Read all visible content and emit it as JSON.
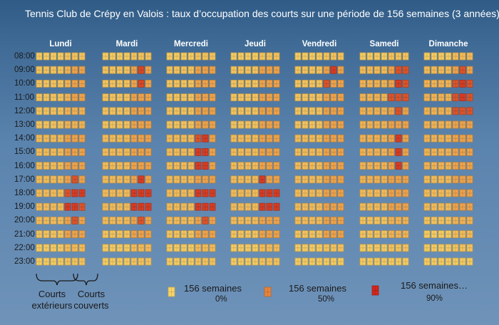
{
  "title": "Tennis Club de Crépy en Valois : taux d’occupation des courts sur une période de 156 semaines (3 années)",
  "chart_data": {
    "type": "heatmap",
    "days": [
      "Lundi",
      "Mardi",
      "Mercredi",
      "Jeudi",
      "Vendredi",
      "Samedi",
      "Dimanche"
    ],
    "hours": [
      "08:00",
      "09:00",
      "10:00",
      "11:00",
      "12:00",
      "13:00",
      "14:00",
      "15:00",
      "16:00",
      "17:00",
      "18:00",
      "19:00",
      "20:00",
      "21:00",
      "22:00",
      "23:00"
    ],
    "courts_per_day": [
      "ext",
      "ext",
      "ext",
      "ext",
      "cov",
      "cov",
      "cov"
    ],
    "color_scale": {
      "low": "#f7d468",
      "mid": "#e8843a",
      "high": "#d2261c"
    },
    "occupancy": [
      [
        [
          0.05,
          0.05,
          0.05,
          0.05,
          0.1,
          0.1,
          0.1
        ],
        [
          0.05,
          0.05,
          0.05,
          0.05,
          0.1,
          0.1,
          0.1
        ],
        [
          0.05,
          0.05,
          0.05,
          0.05,
          0.1,
          0.1,
          0.1
        ],
        [
          0.05,
          0.05,
          0.05,
          0.05,
          0.1,
          0.1,
          0.1
        ],
        [
          0.05,
          0.05,
          0.05,
          0.05,
          0.1,
          0.1,
          0.1
        ],
        [
          0.05,
          0.05,
          0.05,
          0.05,
          0.1,
          0.1,
          0.1
        ],
        [
          0.05,
          0.05,
          0.05,
          0.05,
          0.15,
          0.15,
          0.15
        ]
      ],
      [
        [
          0.1,
          0.1,
          0.1,
          0.1,
          0.2,
          0.3,
          0.3
        ],
        [
          0.1,
          0.1,
          0.1,
          0.1,
          0.3,
          0.75,
          0.3
        ],
        [
          0.1,
          0.1,
          0.1,
          0.1,
          0.3,
          0.3,
          0.3
        ],
        [
          0.1,
          0.1,
          0.1,
          0.1,
          0.3,
          0.3,
          0.3
        ],
        [
          0.1,
          0.1,
          0.1,
          0.1,
          0.3,
          0.8,
          0.3
        ],
        [
          0.15,
          0.15,
          0.15,
          0.15,
          0.3,
          0.7,
          0.7
        ],
        [
          0.15,
          0.15,
          0.15,
          0.15,
          0.3,
          0.7,
          0.3
        ]
      ],
      [
        [
          0.1,
          0.1,
          0.1,
          0.1,
          0.2,
          0.3,
          0.3
        ],
        [
          0.1,
          0.1,
          0.1,
          0.1,
          0.3,
          0.75,
          0.3
        ],
        [
          0.1,
          0.1,
          0.1,
          0.1,
          0.3,
          0.3,
          0.3
        ],
        [
          0.1,
          0.1,
          0.1,
          0.1,
          0.3,
          0.3,
          0.3
        ],
        [
          0.1,
          0.1,
          0.1,
          0.1,
          0.7,
          0.3,
          0.3
        ],
        [
          0.2,
          0.2,
          0.2,
          0.2,
          0.3,
          0.8,
          0.7
        ],
        [
          0.2,
          0.2,
          0.2,
          0.2,
          0.7,
          0.8,
          0.7
        ]
      ],
      [
        [
          0.1,
          0.1,
          0.1,
          0.1,
          0.2,
          0.3,
          0.3
        ],
        [
          0.1,
          0.1,
          0.1,
          0.1,
          0.3,
          0.3,
          0.3
        ],
        [
          0.1,
          0.1,
          0.1,
          0.1,
          0.3,
          0.3,
          0.3
        ],
        [
          0.1,
          0.1,
          0.1,
          0.1,
          0.3,
          0.3,
          0.3
        ],
        [
          0.1,
          0.1,
          0.1,
          0.1,
          0.3,
          0.3,
          0.3
        ],
        [
          0.2,
          0.2,
          0.2,
          0.2,
          0.7,
          0.7,
          0.7
        ],
        [
          0.2,
          0.2,
          0.2,
          0.2,
          0.7,
          0.8,
          0.7
        ]
      ],
      [
        [
          0.1,
          0.1,
          0.1,
          0.1,
          0.2,
          0.2,
          0.2
        ],
        [
          0.1,
          0.1,
          0.1,
          0.1,
          0.3,
          0.3,
          0.3
        ],
        [
          0.1,
          0.1,
          0.1,
          0.1,
          0.3,
          0.3,
          0.3
        ],
        [
          0.1,
          0.1,
          0.1,
          0.1,
          0.3,
          0.3,
          0.3
        ],
        [
          0.1,
          0.1,
          0.1,
          0.1,
          0.3,
          0.3,
          0.3
        ],
        [
          0.2,
          0.2,
          0.2,
          0.2,
          0.3,
          0.7,
          0.3
        ],
        [
          0.2,
          0.2,
          0.2,
          0.2,
          0.7,
          0.7,
          0.7
        ]
      ],
      [
        [
          0.1,
          0.1,
          0.1,
          0.1,
          0.2,
          0.2,
          0.2
        ],
        [
          0.1,
          0.1,
          0.1,
          0.1,
          0.3,
          0.3,
          0.3
        ],
        [
          0.1,
          0.1,
          0.1,
          0.1,
          0.3,
          0.3,
          0.3
        ],
        [
          0.1,
          0.1,
          0.1,
          0.1,
          0.3,
          0.3,
          0.3
        ],
        [
          0.1,
          0.1,
          0.1,
          0.1,
          0.3,
          0.3,
          0.3
        ],
        [
          0.2,
          0.2,
          0.2,
          0.2,
          0.3,
          0.3,
          0.3
        ],
        [
          0.2,
          0.2,
          0.2,
          0.2,
          0.3,
          0.3,
          0.3
        ]
      ],
      [
        [
          0.15,
          0.15,
          0.15,
          0.15,
          0.3,
          0.3,
          0.3
        ],
        [
          0.15,
          0.15,
          0.15,
          0.15,
          0.3,
          0.3,
          0.3
        ],
        [
          0.15,
          0.15,
          0.15,
          0.15,
          0.7,
          0.8,
          0.3
        ],
        [
          0.15,
          0.15,
          0.15,
          0.15,
          0.3,
          0.3,
          0.3
        ],
        [
          0.15,
          0.15,
          0.15,
          0.15,
          0.3,
          0.3,
          0.3
        ],
        [
          0.2,
          0.2,
          0.2,
          0.2,
          0.3,
          0.8,
          0.3
        ],
        [
          0.2,
          0.2,
          0.2,
          0.2,
          0.3,
          0.3,
          0.3
        ]
      ],
      [
        [
          0.15,
          0.15,
          0.15,
          0.15,
          0.3,
          0.3,
          0.3
        ],
        [
          0.15,
          0.15,
          0.15,
          0.15,
          0.3,
          0.3,
          0.3
        ],
        [
          0.15,
          0.15,
          0.15,
          0.15,
          0.8,
          0.8,
          0.3
        ],
        [
          0.15,
          0.15,
          0.15,
          0.15,
          0.3,
          0.3,
          0.3
        ],
        [
          0.15,
          0.15,
          0.15,
          0.15,
          0.3,
          0.3,
          0.3
        ],
        [
          0.2,
          0.2,
          0.2,
          0.2,
          0.3,
          0.8,
          0.3
        ],
        [
          0.2,
          0.2,
          0.2,
          0.2,
          0.3,
          0.3,
          0.3
        ]
      ],
      [
        [
          0.15,
          0.15,
          0.15,
          0.15,
          0.3,
          0.3,
          0.3
        ],
        [
          0.15,
          0.15,
          0.15,
          0.15,
          0.3,
          0.3,
          0.3
        ],
        [
          0.15,
          0.15,
          0.15,
          0.15,
          0.8,
          0.8,
          0.3
        ],
        [
          0.15,
          0.15,
          0.15,
          0.15,
          0.3,
          0.3,
          0.3
        ],
        [
          0.15,
          0.15,
          0.15,
          0.15,
          0.3,
          0.3,
          0.3
        ],
        [
          0.2,
          0.2,
          0.2,
          0.2,
          0.3,
          0.8,
          0.3
        ],
        [
          0.2,
          0.2,
          0.2,
          0.2,
          0.3,
          0.3,
          0.3
        ]
      ],
      [
        [
          0.15,
          0.15,
          0.15,
          0.15,
          0.3,
          0.7,
          0.3
        ],
        [
          0.15,
          0.15,
          0.15,
          0.15,
          0.3,
          0.8,
          0.3
        ],
        [
          0.15,
          0.15,
          0.15,
          0.15,
          0.3,
          0.3,
          0.3
        ],
        [
          0.15,
          0.15,
          0.15,
          0.15,
          0.8,
          0.3,
          0.3
        ],
        [
          0.15,
          0.15,
          0.15,
          0.15,
          0.3,
          0.3,
          0.3
        ],
        [
          0.2,
          0.2,
          0.2,
          0.2,
          0.3,
          0.3,
          0.3
        ],
        [
          0.15,
          0.15,
          0.15,
          0.15,
          0.3,
          0.3,
          0.3
        ]
      ],
      [
        [
          0.15,
          0.15,
          0.15,
          0.15,
          0.7,
          0.8,
          0.8
        ],
        [
          0.15,
          0.15,
          0.15,
          0.15,
          0.8,
          0.8,
          0.8
        ],
        [
          0.15,
          0.15,
          0.15,
          0.15,
          0.8,
          0.8,
          0.8
        ],
        [
          0.15,
          0.15,
          0.15,
          0.15,
          0.8,
          0.8,
          0.8
        ],
        [
          0.15,
          0.15,
          0.15,
          0.15,
          0.3,
          0.3,
          0.3
        ],
        [
          0.15,
          0.15,
          0.15,
          0.15,
          0.3,
          0.3,
          0.3
        ],
        [
          0.15,
          0.15,
          0.15,
          0.15,
          0.3,
          0.3,
          0.3
        ]
      ],
      [
        [
          0.15,
          0.15,
          0.15,
          0.15,
          0.8,
          0.8,
          0.7
        ],
        [
          0.15,
          0.15,
          0.15,
          0.15,
          0.8,
          0.8,
          0.8
        ],
        [
          0.15,
          0.15,
          0.15,
          0.15,
          0.8,
          0.8,
          0.8
        ],
        [
          0.15,
          0.15,
          0.15,
          0.15,
          0.8,
          0.8,
          0.8
        ],
        [
          0.15,
          0.15,
          0.15,
          0.15,
          0.3,
          0.3,
          0.3
        ],
        [
          0.15,
          0.15,
          0.15,
          0.15,
          0.3,
          0.3,
          0.3
        ],
        [
          0.15,
          0.15,
          0.15,
          0.15,
          0.3,
          0.3,
          0.3
        ]
      ],
      [
        [
          0.15,
          0.15,
          0.15,
          0.15,
          0.3,
          0.7,
          0.3
        ],
        [
          0.15,
          0.15,
          0.15,
          0.15,
          0.3,
          0.7,
          0.3
        ],
        [
          0.15,
          0.15,
          0.15,
          0.15,
          0.3,
          0.7,
          0.3
        ],
        [
          0.15,
          0.15,
          0.15,
          0.15,
          0.3,
          0.3,
          0.3
        ],
        [
          0.15,
          0.15,
          0.15,
          0.15,
          0.3,
          0.3,
          0.3
        ],
        [
          0.1,
          0.1,
          0.1,
          0.1,
          0.2,
          0.2,
          0.2
        ],
        [
          0.1,
          0.1,
          0.1,
          0.1,
          0.2,
          0.2,
          0.2
        ]
      ],
      [
        [
          0.1,
          0.1,
          0.1,
          0.1,
          0.3,
          0.3,
          0.3
        ],
        [
          0.1,
          0.1,
          0.1,
          0.1,
          0.3,
          0.3,
          0.3
        ],
        [
          0.1,
          0.1,
          0.1,
          0.1,
          0.3,
          0.3,
          0.3
        ],
        [
          0.1,
          0.1,
          0.1,
          0.1,
          0.3,
          0.3,
          0.3
        ],
        [
          0.1,
          0.1,
          0.1,
          0.1,
          0.3,
          0.3,
          0.3
        ],
        [
          0.1,
          0.1,
          0.1,
          0.1,
          0.2,
          0.2,
          0.2
        ],
        [
          0.05,
          0.05,
          0.05,
          0.05,
          0.15,
          0.15,
          0.15
        ]
      ],
      [
        [
          0.05,
          0.05,
          0.05,
          0.05,
          0.15,
          0.15,
          0.15
        ],
        [
          0.05,
          0.05,
          0.05,
          0.05,
          0.15,
          0.15,
          0.15
        ],
        [
          0.05,
          0.05,
          0.05,
          0.05,
          0.15,
          0.15,
          0.15
        ],
        [
          0.05,
          0.05,
          0.05,
          0.05,
          0.15,
          0.15,
          0.15
        ],
        [
          0.05,
          0.05,
          0.05,
          0.05,
          0.1,
          0.1,
          0.1
        ],
        [
          0.05,
          0.05,
          0.05,
          0.05,
          0.1,
          0.1,
          0.1
        ],
        [
          0.05,
          0.05,
          0.05,
          0.05,
          0.1,
          0.1,
          0.1
        ]
      ],
      [
        [
          0.05,
          0.05,
          0.05,
          0.05,
          0.1,
          0.1,
          0.1
        ],
        [
          0.05,
          0.05,
          0.05,
          0.05,
          0.1,
          0.1,
          0.1
        ],
        [
          0.05,
          0.05,
          0.05,
          0.05,
          0.1,
          0.1,
          0.1
        ],
        [
          0.05,
          0.05,
          0.05,
          0.05,
          0.1,
          0.1,
          0.1
        ],
        [
          0.05,
          0.05,
          0.05,
          0.05,
          0.05,
          0.05,
          0.05
        ],
        [
          0.05,
          0.05,
          0.05,
          0.05,
          0.05,
          0.05,
          0.05
        ],
        [
          0.05,
          0.05,
          0.05,
          0.05,
          0.05,
          0.05,
          0.05
        ]
      ]
    ]
  },
  "legend": {
    "courts_ext_label_1": "Courts",
    "courts_ext_label_2": "extérieurs",
    "courts_cov_label_1": "Courts",
    "courts_cov_label_2": "couverts",
    "items": [
      {
        "label": "156 semaines",
        "pct": "0%",
        "value": 0.0
      },
      {
        "label": "156 semaines",
        "pct": "50%",
        "value": 0.5
      },
      {
        "label": "156 semaines…",
        "pct": "90%",
        "value": 0.9
      }
    ]
  }
}
